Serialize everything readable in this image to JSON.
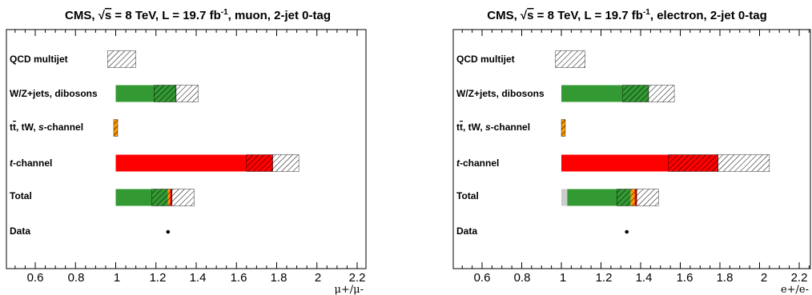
{
  "chart_data": [
    {
      "type": "bar",
      "title": "CMS, √s = 8 TeV, L = 19.7 fb-1, muon, 2-jet 0-tag",
      "title_parts": {
        "prefix": "CMS, ",
        "sqrt": "√",
        "s": "s",
        "energy": " = 8 TeV, L = 19.7 fb",
        "exp": "-1",
        "suffix": ", muon, 2-jet 0-tag"
      },
      "xlabel": "μ+/μ-",
      "xlim": [
        0.5,
        2.25
      ],
      "xticks": [
        "0.6",
        "0.8",
        "1",
        "1.2",
        "1.4",
        "1.6",
        "1.8",
        "2",
        "2.2"
      ],
      "tick_values": [
        0.6,
        0.8,
        1.0,
        1.2,
        1.4,
        1.6,
        1.8,
        2.0,
        2.2
      ],
      "categories": [
        "QCD multijet",
        "W/Z+jets, dibosons",
        "tt̄, tW, s-channel",
        "t-channel",
        "Total",
        "Data"
      ],
      "rows": [
        {
          "name": "QCD multijet",
          "value": 1.0,
          "segments": [],
          "stat": [
            0.96,
            1.1
          ],
          "syst": [
            0.96,
            1.1
          ]
        },
        {
          "name": "W/Z+jets, dibosons",
          "value": 1.3,
          "segments": [
            {
              "from": 1.0,
              "to": 1.3,
              "color": "#339933"
            }
          ],
          "stat": [
            1.19,
            1.3
          ],
          "syst": [
            1.3,
            1.41
          ]
        },
        {
          "name": "tt̄, tW, s-channel",
          "value": 1.0,
          "segments": [
            {
              "from": 0.99,
              "to": 1.01,
              "color": "#ff9900"
            }
          ],
          "stat": [
            0.99,
            1.01
          ],
          "syst": [
            0.99,
            1.01
          ]
        },
        {
          "name": "t-channel",
          "value": 1.78,
          "segments": [
            {
              "from": 1.0,
              "to": 1.78,
              "color": "#ff0000"
            }
          ],
          "stat": [
            1.65,
            1.78
          ],
          "syst": [
            1.78,
            1.91
          ]
        },
        {
          "name": "Total",
          "value": 1.28,
          "segments": [
            {
              "from": 1.0,
              "to": 1.26,
              "color": "#339933"
            },
            {
              "from": 1.26,
              "to": 1.27,
              "color": "#ff9900"
            },
            {
              "from": 1.27,
              "to": 1.28,
              "color": "#ff0000"
            }
          ],
          "stat": [
            1.18,
            1.28
          ],
          "syst": [
            1.28,
            1.39
          ]
        },
        {
          "name": "Data",
          "value": 1.26,
          "point": true
        }
      ]
    },
    {
      "type": "bar",
      "title": "CMS, √s = 8 TeV, L = 19.7 fb-1, electron, 2-jet 0-tag",
      "title_parts": {
        "prefix": "CMS, ",
        "sqrt": "√",
        "s": "s",
        "energy": " = 8 TeV, L = 19.7 fb",
        "exp": "-1",
        "suffix": ", electron, 2-jet 0-tag"
      },
      "xlabel": "e+/e-",
      "xlim": [
        0.5,
        2.25
      ],
      "xticks": [
        "0.6",
        "0.8",
        "1",
        "1.2",
        "1.4",
        "1.6",
        "1.8",
        "2",
        "2.2"
      ],
      "tick_values": [
        0.6,
        0.8,
        1.0,
        1.2,
        1.4,
        1.6,
        1.8,
        2.0,
        2.2
      ],
      "categories": [
        "QCD multijet",
        "W/Z+jets, dibosons",
        "tt̄, tW, s-channel",
        "t-channel",
        "Total",
        "Data"
      ],
      "rows": [
        {
          "name": "QCD multijet",
          "value": 1.0,
          "segments": [],
          "stat": [
            0.97,
            1.12
          ],
          "syst": [
            0.97,
            1.12
          ]
        },
        {
          "name": "W/Z+jets, dibosons",
          "value": 1.44,
          "segments": [
            {
              "from": 1.0,
              "to": 1.44,
              "color": "#339933"
            }
          ],
          "stat": [
            1.31,
            1.44
          ],
          "syst": [
            1.44,
            1.57
          ]
        },
        {
          "name": "tt̄, tW, s-channel",
          "value": 1.01,
          "segments": [
            {
              "from": 1.0,
              "to": 1.02,
              "color": "#ff9900"
            }
          ],
          "stat": [
            1.0,
            1.02
          ],
          "syst": [
            1.0,
            1.02
          ]
        },
        {
          "name": "t-channel",
          "value": 1.79,
          "segments": [
            {
              "from": 1.0,
              "to": 1.79,
              "color": "#ff0000"
            }
          ],
          "stat": [
            1.54,
            1.79
          ],
          "syst": [
            1.79,
            2.05
          ]
        },
        {
          "name": "Total",
          "value": 1.38,
          "segments": [
            {
              "from": 1.0,
              "to": 1.03,
              "color": "#cccccc"
            },
            {
              "from": 1.03,
              "to": 1.35,
              "color": "#339933"
            },
            {
              "from": 1.35,
              "to": 1.37,
              "color": "#ff9900"
            },
            {
              "from": 1.37,
              "to": 1.38,
              "color": "#ff0000"
            }
          ],
          "stat": [
            1.28,
            1.38
          ],
          "syst": [
            1.38,
            1.49
          ]
        },
        {
          "name": "Data",
          "value": 1.33,
          "point": true
        }
      ]
    }
  ]
}
